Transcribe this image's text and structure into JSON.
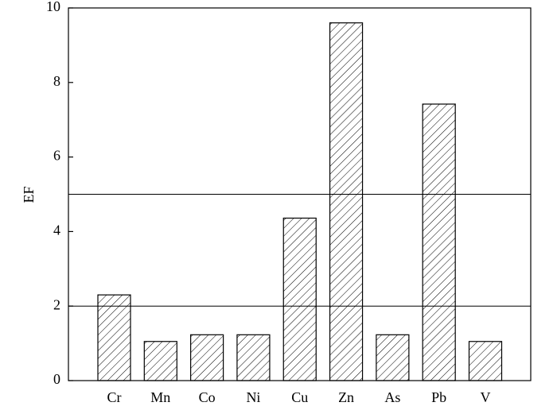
{
  "chart_data": {
    "type": "bar",
    "y_label": "EF",
    "categories": [
      "Cr",
      "Mn",
      "Co",
      "Ni",
      "Cu",
      "Zn",
      "As",
      "Pb",
      "V"
    ],
    "values": [
      2.3,
      1.05,
      1.23,
      1.23,
      4.36,
      9.6,
      1.23,
      7.42,
      1.05
    ],
    "color": "#000000",
    "ylim": [
      0,
      10
    ],
    "yticks": [
      0,
      2,
      4,
      6,
      8,
      10
    ],
    "reference_lines": [
      2,
      5
    ]
  }
}
